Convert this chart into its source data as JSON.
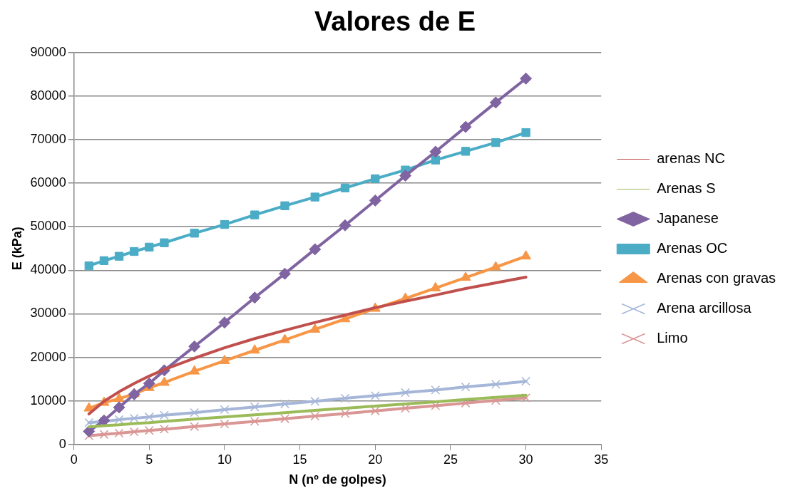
{
  "chart_data": {
    "type": "line",
    "title": "Valores de E",
    "xlabel": "N (nº de golpes)",
    "ylabel": "E (kPa)",
    "x": [
      1,
      2,
      3,
      4,
      5,
      6,
      8,
      10,
      12,
      14,
      16,
      18,
      20,
      22,
      24,
      26,
      28,
      30
    ],
    "xlim": [
      0,
      35
    ],
    "xticks": [
      0,
      5,
      10,
      15,
      20,
      25,
      30,
      35
    ],
    "ylim": [
      0,
      90000
    ],
    "yticks": [
      0,
      10000,
      20000,
      30000,
      40000,
      50000,
      60000,
      70000,
      80000,
      90000
    ],
    "grid": "y",
    "legend": "right",
    "series": [
      {
        "name": "arenas NC",
        "color": "#c0504d",
        "marker": "none",
        "values": [
          7000,
          9900,
          12100,
          14000,
          15700,
          17200,
          19800,
          22200,
          24300,
          26200,
          28000,
          29700,
          31400,
          32900,
          34300,
          35800,
          37100,
          38400
        ]
      },
      {
        "name": "Arenas S",
        "color": "#9bbb59",
        "marker": "none",
        "values": [
          4000,
          4300,
          4500,
          4800,
          5000,
          5300,
          5800,
          6300,
          6800,
          7300,
          7800,
          8300,
          8800,
          9300,
          9800,
          10300,
          10800,
          11300
        ]
      },
      {
        "name": "Japanese",
        "color": "#8064a2",
        "marker": "diamond",
        "values": [
          3000,
          5500,
          8500,
          11500,
          14000,
          17000,
          22500,
          28000,
          33700,
          39200,
          44800,
          50300,
          56000,
          61700,
          67200,
          72900,
          78500,
          84000
        ]
      },
      {
        "name": "Arenas OC",
        "color": "#4bacc6",
        "marker": "square",
        "values": [
          41000,
          42200,
          43200,
          44300,
          45300,
          46300,
          48500,
          50500,
          52700,
          54800,
          56800,
          58900,
          61000,
          63000,
          65300,
          67300,
          69300,
          71600
        ]
      },
      {
        "name": "Arenas con gravas",
        "color": "#f79646",
        "marker": "triangle",
        "values": [
          8300,
          9600,
          10500,
          11600,
          13000,
          14200,
          16800,
          19200,
          21600,
          24000,
          26400,
          28800,
          31200,
          33500,
          35900,
          38300,
          40700,
          43200
        ]
      },
      {
        "name": "Arena arcillosa",
        "color": "#a5b6d8",
        "marker": "cross",
        "values": [
          5000,
          5300,
          5700,
          6000,
          6300,
          6700,
          7300,
          8000,
          8600,
          9300,
          9900,
          10600,
          11200,
          11900,
          12500,
          13200,
          13800,
          14500
        ]
      },
      {
        "name": "Limo",
        "color": "#d99694",
        "marker": "cross",
        "values": [
          2000,
          2300,
          2600,
          2900,
          3200,
          3500,
          4100,
          4700,
          5300,
          5900,
          6500,
          7100,
          7700,
          8300,
          8900,
          9500,
          10100,
          10700
        ]
      }
    ]
  }
}
